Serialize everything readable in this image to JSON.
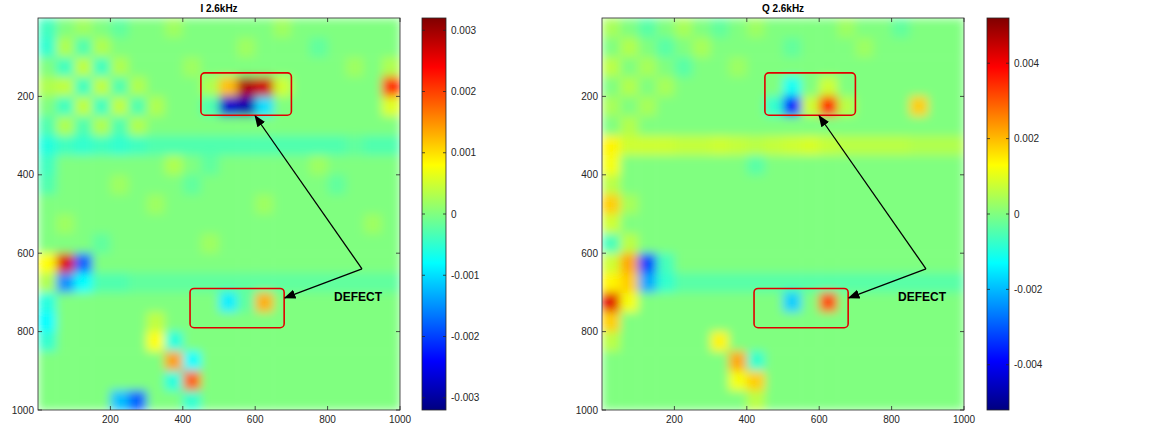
{
  "chart_data": [
    {
      "type": "heatmap",
      "title": "I 2.6kHz",
      "xlim": [
        0,
        1000
      ],
      "ylim": [
        0,
        1000
      ],
      "xticks": [
        200,
        400,
        600,
        800,
        1000
      ],
      "yticks": [
        200,
        400,
        600,
        800,
        1000
      ],
      "colorbar": {
        "range": [
          -0.0032,
          0.0032
        ],
        "ticks": [
          -0.003,
          -0.002,
          -0.001,
          0,
          0.001,
          0.002,
          0.003
        ]
      },
      "annotations": [
        {
          "text": "DEFECT"
        }
      ],
      "cells": [
        [
          -0.0004,
          0,
          0.0002,
          0,
          -0.0002,
          0,
          0,
          0.0002,
          0,
          0,
          0,
          0,
          0,
          0.0002,
          0,
          0,
          0,
          0,
          0,
          0
        ],
        [
          -0.0005,
          0.0003,
          -0.0003,
          0.0003,
          0,
          0,
          0,
          0,
          0,
          0,
          0,
          0.0002,
          0,
          0,
          0,
          -0.0002,
          0,
          0,
          0,
          0
        ],
        [
          0,
          -0.0004,
          0.0004,
          -0.0004,
          0.0003,
          0,
          0,
          0,
          0.0002,
          0,
          0,
          0,
          0,
          0,
          0,
          0,
          0,
          0.0002,
          0,
          0.0003
        ],
        [
          0.0003,
          0.0004,
          -0.0004,
          0.0004,
          -0.0003,
          0.0003,
          0,
          0,
          0,
          0.0003,
          0.0012,
          0.0029,
          0.0027,
          0.0005,
          0,
          0,
          0,
          0,
          0,
          0.0022
        ],
        [
          0,
          -0.0004,
          0.0004,
          -0.0004,
          0.0004,
          -0.0003,
          0.0003,
          0,
          0,
          -0.0003,
          -0.0027,
          -0.0029,
          -0.001,
          0,
          0,
          0,
          0,
          0,
          0,
          0.0006
        ],
        [
          -0.0003,
          0.0003,
          -0.0003,
          0.0003,
          -0.0003,
          0.0003,
          0,
          0,
          0,
          0,
          0,
          0,
          0,
          0,
          0,
          0,
          0,
          0,
          0,
          0
        ],
        [
          -0.0006,
          -0.0004,
          -0.0005,
          -0.0004,
          -0.0005,
          -0.0004,
          -0.0003,
          -0.0003,
          -0.0003,
          -0.0003,
          -0.0003,
          -0.0003,
          -0.0003,
          -0.0003,
          -0.0003,
          -0.0003,
          -0.0003,
          -0.0002,
          -0.0003,
          -0.0003
        ],
        [
          -0.0004,
          0,
          0,
          0,
          0,
          0,
          0,
          0.0003,
          0,
          -0.0002,
          0,
          0,
          0,
          0,
          0,
          0.0002,
          0,
          0,
          0,
          0
        ],
        [
          -0.0003,
          0,
          0,
          0,
          0.0002,
          0,
          0,
          0,
          -0.0002,
          0,
          0,
          0,
          0,
          0,
          0,
          0,
          -0.0002,
          0,
          0,
          0
        ],
        [
          0,
          0,
          0,
          0,
          0,
          0,
          0.0002,
          0,
          0,
          0,
          0,
          0,
          0.0002,
          0,
          0,
          0,
          0,
          0,
          0,
          0
        ],
        [
          0,
          0.0002,
          0,
          0,
          0,
          0,
          0,
          0,
          0,
          0,
          0,
          0,
          0,
          0,
          0,
          0,
          0,
          0,
          0.0002,
          0
        ],
        [
          0,
          0,
          0,
          -0.0002,
          0,
          0,
          0,
          0,
          0,
          0.0002,
          0,
          0,
          0,
          0,
          0,
          0,
          0,
          0,
          0,
          0
        ],
        [
          0.0008,
          0.0026,
          -0.0018,
          0,
          0,
          0,
          0,
          0,
          0,
          0,
          0,
          0,
          0,
          0,
          0,
          0,
          0,
          0,
          0,
          0
        ],
        [
          0.0003,
          -0.0015,
          -0.0008,
          -0.0003,
          -0.0003,
          -0.0002,
          -0.0002,
          -0.0002,
          -0.0002,
          -0.0002,
          -0.0002,
          -0.0002,
          -0.0002,
          -0.0002,
          -0.0002,
          -0.0002,
          -0.0002,
          -0.0002,
          -0.0002,
          -0.0002
        ],
        [
          -0.0006,
          0,
          0,
          0,
          0,
          0,
          0,
          0,
          0,
          0,
          -0.0009,
          -0.0002,
          0.0013,
          0,
          0,
          0,
          0,
          0,
          0,
          0
        ],
        [
          -0.0008,
          0,
          0,
          0,
          0,
          0,
          0.0004,
          0,
          0,
          0,
          0,
          0,
          0,
          0,
          0,
          0,
          0,
          0,
          0,
          0
        ],
        [
          -0.0005,
          0,
          0,
          0,
          0,
          0,
          0.0008,
          -0.0006,
          0,
          0,
          0,
          0,
          0,
          0,
          0,
          0,
          0,
          0,
          0,
          0
        ],
        [
          0,
          0,
          0,
          0,
          0,
          0,
          0,
          0.0014,
          -0.0008,
          0,
          0,
          0,
          0,
          0,
          0,
          0,
          0,
          0,
          0,
          0
        ],
        [
          0,
          0,
          0,
          0,
          0,
          0,
          0,
          -0.0006,
          0.0018,
          0,
          0,
          0,
          0,
          0,
          0,
          0,
          0,
          0,
          0,
          0
        ],
        [
          0,
          0,
          0,
          0,
          -0.0012,
          -0.0018,
          0,
          0,
          -0.0005,
          0,
          0,
          0,
          0,
          0,
          0,
          0,
          0,
          0,
          0,
          0
        ]
      ]
    },
    {
      "type": "heatmap",
      "title": "Q 2.6kHz",
      "xlim": [
        0,
        1000
      ],
      "ylim": [
        0,
        1000
      ],
      "xticks": [
        200,
        400,
        600,
        800,
        1000
      ],
      "yticks": [
        200,
        400,
        600,
        800,
        1000
      ],
      "colorbar": {
        "range": [
          -0.0052,
          0.0052
        ],
        "ticks": [
          -0.004,
          -0.002,
          0,
          0.002,
          0.004
        ]
      },
      "annotations": [
        {
          "text": "DEFECT"
        }
      ],
      "cells": [
        [
          0.0004,
          0,
          -0.0004,
          0,
          0.0004,
          0,
          -0.0003,
          0,
          0.0003,
          0,
          0,
          0,
          0,
          0.0003,
          0,
          0,
          -0.0003,
          0,
          0,
          0
        ],
        [
          0,
          0.0005,
          0,
          -0.0004,
          0,
          0.0004,
          0,
          0,
          0,
          0,
          -0.0003,
          0,
          0,
          0,
          0.0003,
          0,
          0,
          0,
          0,
          0
        ],
        [
          0.0006,
          0,
          0.0004,
          0,
          -0.0004,
          0,
          0,
          0.0003,
          0,
          0,
          0,
          0,
          0,
          0,
          0,
          0,
          0,
          0,
          0,
          0
        ],
        [
          0,
          0.0005,
          0,
          0.0004,
          0,
          0,
          0,
          0,
          0,
          0,
          -0.0012,
          0,
          0.0008,
          0,
          0,
          0,
          0,
          0,
          0,
          0
        ],
        [
          0.0004,
          0,
          0.0004,
          0,
          0,
          0,
          0,
          0,
          0,
          -0.0008,
          -0.0038,
          0.0008,
          0.0036,
          0.0006,
          0,
          0,
          0,
          0.0018,
          0,
          0
        ],
        [
          0,
          0.0005,
          0,
          0,
          0,
          0,
          0,
          0,
          0,
          0,
          0,
          0,
          0,
          0,
          0,
          0,
          0,
          0,
          0,
          0
        ],
        [
          0.0014,
          0.0008,
          0.0008,
          0.0008,
          0.0007,
          0.0007,
          0.0008,
          0.0007,
          0.0006,
          0.0007,
          0.0008,
          0.0009,
          0.0007,
          0.0006,
          0.0006,
          0.0006,
          0.0006,
          0.0005,
          0.0005,
          0.0005
        ],
        [
          0.0012,
          0,
          0,
          0,
          0,
          0,
          0,
          0,
          -0.0004,
          0,
          0,
          0,
          0,
          0,
          0,
          0,
          0,
          0,
          0,
          0
        ],
        [
          0.0006,
          0,
          0,
          0,
          0,
          0,
          0,
          0,
          0,
          0,
          0,
          0,
          0,
          0,
          0,
          0,
          0,
          0,
          0,
          0
        ],
        [
          0.0018,
          0.0004,
          0,
          0,
          0,
          0,
          0,
          0,
          0,
          0,
          0,
          0,
          0,
          0,
          0,
          0,
          0,
          0,
          0,
          0
        ],
        [
          0.0008,
          0,
          0,
          0,
          0,
          0,
          0,
          0,
          0,
          0,
          0,
          0,
          0,
          0,
          0,
          0,
          0,
          0,
          0,
          0
        ],
        [
          -0.0006,
          0.0006,
          0,
          0,
          0,
          0,
          0,
          0,
          0,
          0,
          0,
          0,
          0,
          0,
          0,
          0,
          0,
          0,
          0,
          0
        ],
        [
          0.0008,
          0.0022,
          -0.0032,
          -0.0006,
          0,
          0,
          0,
          0,
          0,
          0,
          0,
          0,
          0,
          0,
          0,
          0,
          0,
          0,
          0,
          0
        ],
        [
          0.0014,
          0.0018,
          -0.0022,
          -0.0008,
          -0.0004,
          -0.0004,
          -0.0004,
          -0.0004,
          -0.0004,
          -0.0004,
          -0.0004,
          -0.0004,
          -0.0004,
          -0.0004,
          -0.0004,
          -0.0004,
          -0.0004,
          -0.0004,
          -0.0004,
          -0.0004
        ],
        [
          0.0042,
          0.0012,
          0,
          0,
          0,
          0,
          0,
          0,
          0,
          0,
          -0.0018,
          0,
          0.0032,
          0,
          0,
          0,
          0,
          0,
          0,
          0
        ],
        [
          0.0018,
          0,
          0,
          0,
          0,
          0,
          0,
          0,
          0,
          0,
          0,
          0,
          0,
          0,
          0,
          0,
          0,
          0,
          0,
          0
        ],
        [
          0.0006,
          0,
          0,
          0,
          0,
          0,
          0.0014,
          0,
          0,
          0,
          0,
          0,
          0,
          0,
          0,
          0,
          0,
          0,
          0,
          0
        ],
        [
          0,
          0,
          0,
          0,
          0,
          0,
          0,
          0.0022,
          -0.0008,
          0,
          0,
          0,
          0,
          0,
          0,
          0,
          0,
          0,
          0,
          0
        ],
        [
          0,
          0,
          0,
          0,
          0,
          0,
          0,
          0.0012,
          0.0018,
          0,
          0,
          0,
          0,
          0,
          0,
          0,
          0,
          0,
          0,
          0
        ],
        [
          0,
          0,
          0,
          0,
          0,
          0,
          0,
          0,
          0.0006,
          0,
          0,
          0,
          0,
          0,
          0,
          0,
          0,
          0,
          0,
          0
        ]
      ]
    }
  ]
}
